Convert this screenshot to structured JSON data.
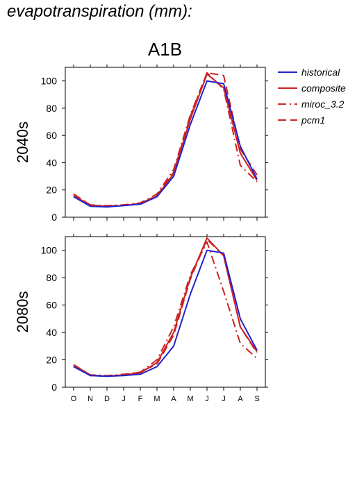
{
  "page_title": "evapotranspiration (mm):",
  "scenario_title": "A1B",
  "legend": [
    {
      "name": "historical",
      "color": "#2222cc",
      "dash": "solid"
    },
    {
      "name": "composite",
      "color": "#cc2222",
      "dash": "solid"
    },
    {
      "name": "miroc_3.2",
      "color": "#cc2222",
      "dash": "dashdot"
    },
    {
      "name": "pcm1",
      "color": "#cc2222",
      "dash": "dashed"
    }
  ],
  "chart_data": [
    {
      "type": "line",
      "panel_label": "2040s",
      "categories": [
        "O",
        "N",
        "D",
        "J",
        "F",
        "M",
        "A",
        "M",
        "J",
        "J",
        "A",
        "S"
      ],
      "ylim": [
        0,
        110
      ],
      "yticks": [
        0,
        20,
        40,
        60,
        80,
        100
      ],
      "series": [
        {
          "name": "historical",
          "values": [
            15,
            8,
            7.5,
            8.5,
            9.5,
            15,
            30,
            68,
            100,
            98,
            52,
            28
          ]
        },
        {
          "name": "composite",
          "values": [
            16,
            8.5,
            8,
            8.5,
            10,
            15.5,
            32,
            72,
            105,
            95,
            47,
            27
          ]
        },
        {
          "name": "miroc_3.2",
          "values": [
            17,
            9,
            8.5,
            9,
            10.5,
            17,
            35,
            75,
            106,
            94,
            38,
            26
          ]
        },
        {
          "name": "pcm1",
          "values": [
            16.5,
            9,
            8,
            9,
            10,
            16,
            33,
            74,
            106,
            104,
            50,
            31
          ]
        }
      ]
    },
    {
      "type": "line",
      "panel_label": "2080s",
      "categories": [
        "O",
        "N",
        "D",
        "J",
        "F",
        "M",
        "A",
        "M",
        "J",
        "J",
        "A",
        "S"
      ],
      "ylim": [
        0,
        110
      ],
      "yticks": [
        0,
        20,
        40,
        60,
        80,
        100
      ],
      "series": [
        {
          "name": "historical",
          "values": [
            15,
            8.5,
            8,
            8.5,
            9.5,
            15,
            30,
            68,
            100,
            98,
            50,
            27
          ]
        },
        {
          "name": "composite",
          "values": [
            16,
            9,
            8,
            9,
            10.5,
            18,
            40,
            80,
            109,
            96,
            44,
            26
          ]
        },
        {
          "name": "miroc_3.2",
          "values": [
            16.5,
            9,
            8.5,
            9.5,
            11,
            20,
            44,
            82,
            106,
            70,
            32,
            21
          ]
        },
        {
          "name": "pcm1",
          "values": [
            15.5,
            8.5,
            8,
            9,
            11,
            17,
            38,
            79,
            108,
            96,
            44,
            25
          ]
        }
      ]
    }
  ]
}
